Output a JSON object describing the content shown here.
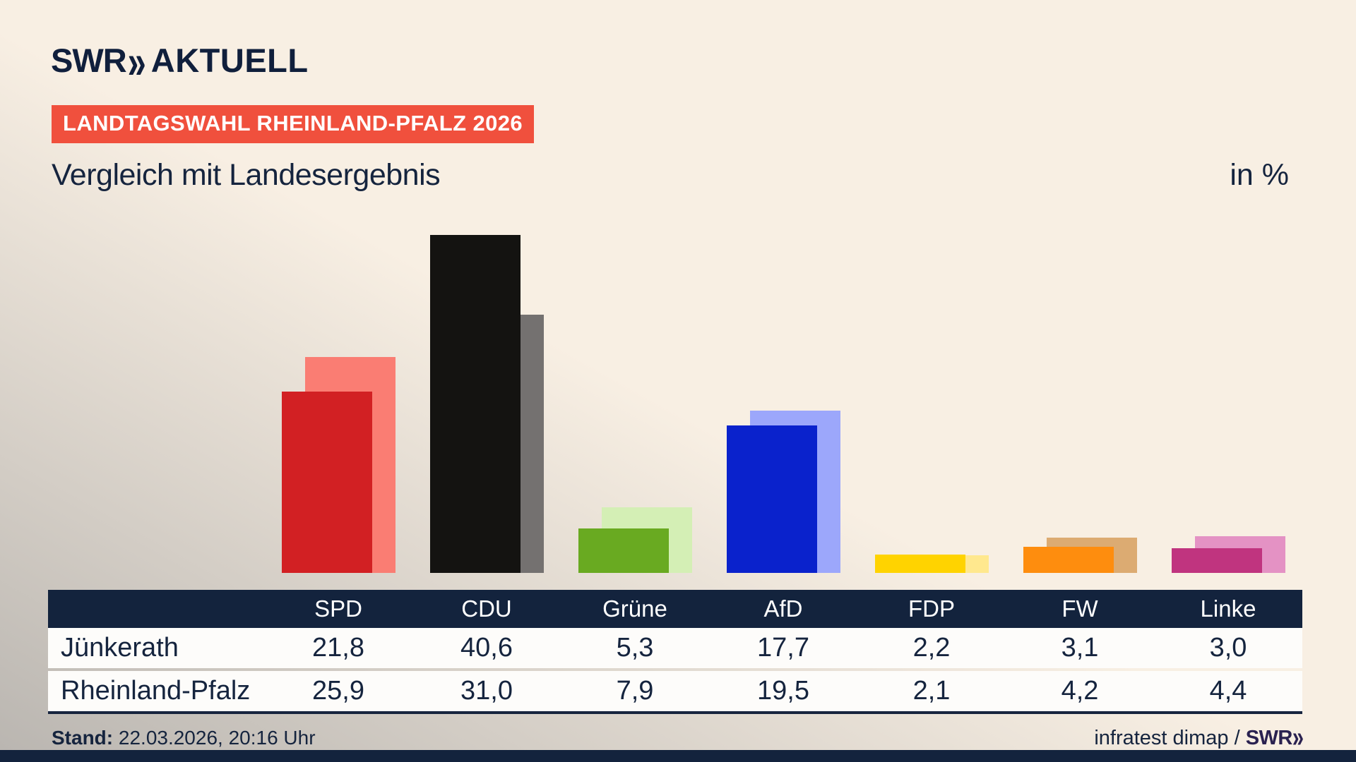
{
  "brand": {
    "name": "SWR",
    "chevrons": "»",
    "suffix": "AKTUELL"
  },
  "badge": {
    "label": "LANDTAGSWAHL RHEINLAND-PFALZ 2026",
    "bg_color": "#f0503d"
  },
  "header": {
    "title": "Vergleich mit Landesergebnis",
    "unit_label": "in %"
  },
  "chart_data": {
    "type": "bar",
    "title": "Vergleich mit Landesergebnis",
    "unit": "in %",
    "categories": [
      "SPD",
      "CDU",
      "Grüne",
      "AfD",
      "FDP",
      "FW",
      "Linke"
    ],
    "series": [
      {
        "name": "Jünkerath",
        "role": "foreground",
        "values": [
          21.8,
          40.6,
          5.3,
          17.7,
          2.2,
          3.1,
          3.0
        ],
        "colors": [
          "#d22023",
          "#141311",
          "#69aa21",
          "#0a22cc",
          "#ffd300",
          "#fe8d0e",
          "#c0347f"
        ]
      },
      {
        "name": "Rheinland-Pfalz",
        "role": "background",
        "values": [
          25.9,
          31.0,
          7.9,
          19.5,
          2.1,
          4.2,
          4.4
        ],
        "colors": [
          "#fa7d73",
          "#747170",
          "#d4efb5",
          "#9ca7fb",
          "#ffe88e",
          "#dcab72",
          "#e492c4"
        ]
      }
    ],
    "ylim": [
      0,
      44
    ],
    "grid": false,
    "legend": "none (series identified by table rows below)"
  },
  "table": {
    "header_labels": [
      "",
      "SPD",
      "CDU",
      "Grüne",
      "AfD",
      "FDP",
      "FW",
      "Linke"
    ],
    "rows": [
      {
        "label": "Jünkerath",
        "values": [
          "21,8",
          "40,6",
          "5,3",
          "17,7",
          "2,2",
          "3,1",
          "3,0"
        ]
      },
      {
        "label": "Rheinland-Pfalz",
        "values": [
          "25,9",
          "31,0",
          "7,9",
          "19,5",
          "2,1",
          "4,2",
          "4,4"
        ]
      }
    ]
  },
  "footer": {
    "stand_label": "Stand:",
    "stand_value": "22.03.2026, 20:16 Uhr",
    "source_text": "infratest dimap / ",
    "source_brand": "SWR",
    "source_brand_chevrons": "»"
  },
  "colors": {
    "navy": "#13233d",
    "text": "#15243e",
    "badge_red": "#f0503d",
    "background_beige": "#f8efe3",
    "background_edge_gray": "#b9b5b0"
  }
}
